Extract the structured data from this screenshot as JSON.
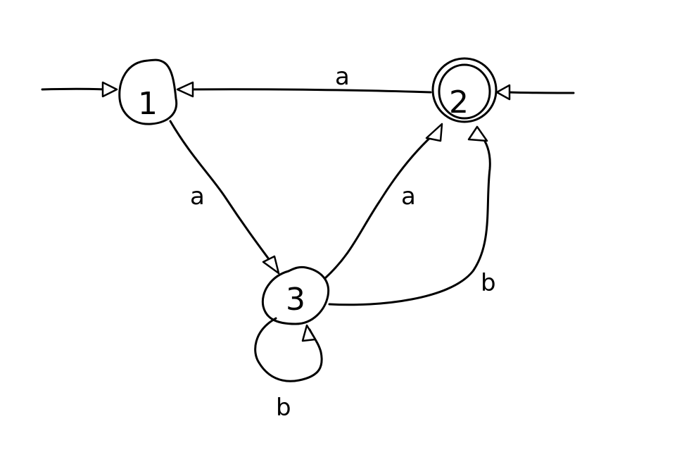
{
  "diagram": {
    "type": "finite-automaton",
    "states": [
      {
        "id": "s1",
        "label": "1",
        "initial": true,
        "accepting": false
      },
      {
        "id": "s2",
        "label": "2",
        "initial": true,
        "accepting": true
      },
      {
        "id": "s3",
        "label": "3",
        "initial": false,
        "accepting": false
      }
    ],
    "transitions": [
      {
        "from": "2",
        "to": "1",
        "label": "a"
      },
      {
        "from": "1",
        "to": "3",
        "label": "a"
      },
      {
        "from": "3",
        "to": "2",
        "label": "a"
      },
      {
        "from": "3",
        "to": "2",
        "label": "b"
      },
      {
        "from": "3",
        "to": "3",
        "label": "b"
      }
    ]
  }
}
